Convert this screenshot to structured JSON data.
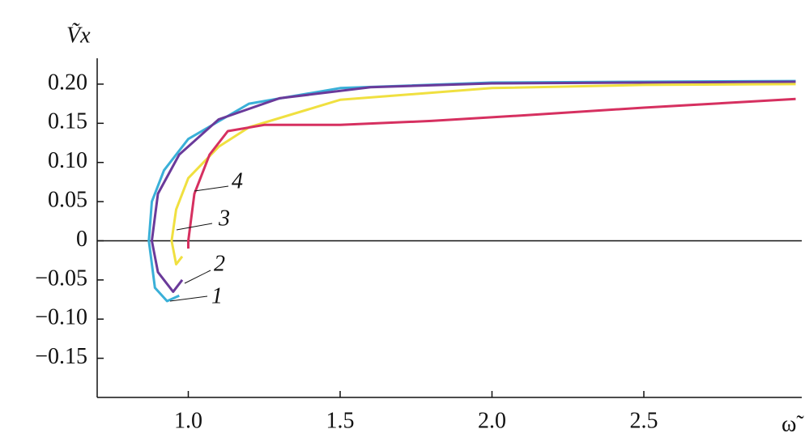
{
  "chart_data": {
    "type": "line",
    "x_label": "ω̃",
    "y_label": "Ṽx",
    "xlim": [
      0.7,
      3.02
    ],
    "ylim": [
      -0.2,
      0.233
    ],
    "xticks": [
      {
        "value": 1.0,
        "label": "1.0"
      },
      {
        "value": 1.5,
        "label": "1.5"
      },
      {
        "value": 2.0,
        "label": "2.0"
      },
      {
        "value": 2.5,
        "label": "2.5"
      }
    ],
    "yticks": [
      {
        "value": 0.2,
        "label": "0.20"
      },
      {
        "value": 0.15,
        "label": "0.15"
      },
      {
        "value": 0.1,
        "label": "0.10"
      },
      {
        "value": 0.05,
        "label": "0.05"
      },
      0,
      {
        "value": -0.05,
        "label": "−0.05"
      },
      {
        "value": -0.1,
        "label": "−0.10"
      },
      {
        "value": -0.15,
        "label": "−0.15"
      }
    ],
    "series": [
      {
        "name": "1",
        "color": "#3ab0d8",
        "x": [
          0.97,
          0.93,
          0.89,
          0.87,
          0.88,
          0.92,
          1.0,
          1.2,
          1.5,
          2.0,
          2.5,
          3.0
        ],
        "values": [
          -0.07,
          -0.077,
          -0.06,
          0,
          0.05,
          0.09,
          0.13,
          0.175,
          0.195,
          0.202,
          0.203,
          0.204
        ]
      },
      {
        "name": "2",
        "color": "#6a3a9a",
        "x": [
          0.98,
          0.95,
          0.9,
          0.88,
          0.9,
          0.97,
          1.1,
          1.3,
          1.6,
          2.0,
          2.5,
          3.0
        ],
        "values": [
          -0.05,
          -0.065,
          -0.04,
          0,
          0.06,
          0.11,
          0.155,
          0.182,
          0.196,
          0.201,
          0.202,
          0.203
        ]
      },
      {
        "name": "3",
        "color": "#f0e040",
        "x": [
          0.98,
          0.96,
          0.945,
          0.96,
          1.0,
          1.1,
          1.2,
          1.5,
          2.0,
          2.5,
          3.0
        ],
        "values": [
          -0.02,
          -0.03,
          0,
          0.04,
          0.08,
          0.12,
          0.145,
          0.18,
          0.195,
          0.199,
          0.2
        ]
      },
      {
        "name": "4",
        "color": "#d63060",
        "x": [
          1.0,
          1.0,
          1.02,
          1.07,
          1.13,
          1.25,
          1.5,
          1.8,
          2.1,
          2.5,
          3.0
        ],
        "values": [
          -0.01,
          0,
          0.06,
          0.11,
          0.14,
          0.148,
          0.148,
          0.153,
          0.16,
          0.17,
          0.181
        ]
      }
    ]
  }
}
